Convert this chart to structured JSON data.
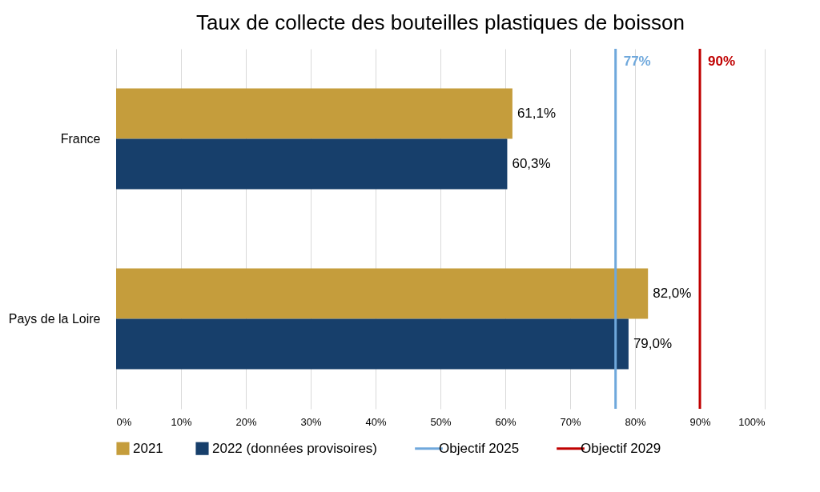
{
  "chart_data": {
    "type": "bar",
    "orientation": "horizontal",
    "title": "Taux de collecte des bouteilles plastiques de boisson",
    "categories": [
      "France",
      "Pays de la Loire"
    ],
    "series": [
      {
        "name": "2021",
        "color": "#c59d3c",
        "values": [
          61.1,
          82.0
        ],
        "value_labels": [
          "61,1%",
          "82,0%"
        ]
      },
      {
        "name": "2022 (données provisoires)",
        "color": "#173f6b",
        "values": [
          60.3,
          79.0
        ],
        "value_labels": [
          "60,3%",
          "79,0%"
        ]
      }
    ],
    "xlim": [
      0,
      100
    ],
    "xticks": [
      {
        "value": 0,
        "label": "0%"
      },
      {
        "value": 10,
        "label": "10%"
      },
      {
        "value": 20,
        "label": "20%"
      },
      {
        "value": 30,
        "label": "30%"
      },
      {
        "value": 40,
        "label": "40%"
      },
      {
        "value": 50,
        "label": "50%"
      },
      {
        "value": 60,
        "label": "60%"
      },
      {
        "value": 70,
        "label": "70%"
      },
      {
        "value": 80,
        "label": "80%"
      },
      {
        "value": 90,
        "label": "90%"
      },
      {
        "value": 100,
        "label": "100%"
      }
    ],
    "ref_lines": [
      {
        "axis": "x",
        "value": 77,
        "label": "77%",
        "color": "#6fa8dc"
      },
      {
        "axis": "x",
        "value": 90,
        "label": "90%",
        "color": "#c00000"
      }
    ],
    "annotations": [
      "Objectif 2025",
      "Objectif 2029"
    ],
    "grid": "x",
    "legend": "bottom"
  }
}
